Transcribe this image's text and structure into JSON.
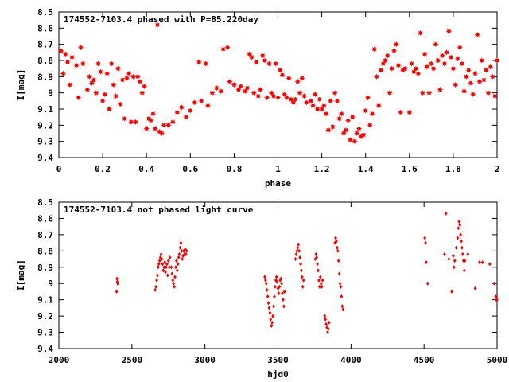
{
  "chart_data": [
    {
      "type": "scatter",
      "title": "174552-7103.4 phased with P=85.220day",
      "xlabel": "phase",
      "ylabel": "I[mag]",
      "xlim": [
        0,
        2
      ],
      "ylim": [
        8.5,
        9.4
      ],
      "y_inverted": true,
      "grid": false,
      "marker": "star",
      "color": "#ff0000",
      "x_ticks": [
        0,
        0.2,
        0.4,
        0.6,
        0.8,
        1,
        1.2,
        1.4,
        1.6,
        1.8,
        2
      ],
      "x_tick_labels": [
        "0",
        "0.2",
        "0.4",
        "0.6",
        "0.8",
        "1",
        "1.2",
        "1.4",
        "1.6",
        "1.8",
        "2"
      ],
      "y_ticks": [
        8.5,
        8.6,
        8.7,
        8.8,
        8.9,
        9,
        9.1,
        9.2,
        9.3,
        9.4
      ],
      "y_tick_labels": [
        "8.5",
        "8.6",
        "8.7",
        "8.8",
        "8.9",
        "9",
        "9.1",
        "9.2",
        "9.3",
        "9.4"
      ],
      "points": [
        [
          0.01,
          8.74
        ],
        [
          0.02,
          8.88
        ],
        [
          0.03,
          8.76
        ],
        [
          0.04,
          8.81
        ],
        [
          0.05,
          8.95
        ],
        [
          0.06,
          8.78
        ],
        [
          0.08,
          8.83
        ],
        [
          0.09,
          9.03
        ],
        [
          0.1,
          8.72
        ],
        [
          0.11,
          8.82
        ],
        [
          0.13,
          8.98
        ],
        [
          0.14,
          8.9
        ],
        [
          0.15,
          8.94
        ],
        [
          0.16,
          8.92
        ],
        [
          0.17,
          9.0
        ],
        [
          0.18,
          8.82
        ],
        [
          0.19,
          8.87
        ],
        [
          0.2,
          9.05
        ],
        [
          0.21,
          9.01
        ],
        [
          0.22,
          8.88
        ],
        [
          0.23,
          9.1
        ],
        [
          0.24,
          8.82
        ],
        [
          0.25,
          8.95
        ],
        [
          0.26,
          9.02
        ],
        [
          0.27,
          8.85
        ],
        [
          0.28,
          9.07
        ],
        [
          0.29,
          8.92
        ],
        [
          0.3,
          9.16
        ],
        [
          0.31,
          8.91
        ],
        [
          0.32,
          8.88
        ],
        [
          0.33,
          9.18
        ],
        [
          0.34,
          8.9
        ],
        [
          0.35,
          9.18
        ],
        [
          0.36,
          8.9
        ],
        [
          0.37,
          8.93
        ],
        [
          0.38,
          9.0
        ],
        [
          0.39,
          8.96
        ],
        [
          0.4,
          9.22
        ],
        [
          0.41,
          9.16
        ],
        [
          0.42,
          9.17
        ],
        [
          0.43,
          9.13
        ],
        [
          0.44,
          9.22
        ],
        [
          0.45,
          8.58
        ],
        [
          0.46,
          9.24
        ],
        [
          0.47,
          9.25
        ],
        [
          0.48,
          9.2
        ],
        [
          0.5,
          9.2
        ],
        [
          0.52,
          9.18
        ],
        [
          0.54,
          9.12
        ],
        [
          0.56,
          9.09
        ],
        [
          0.58,
          9.15
        ],
        [
          0.6,
          9.11
        ],
        [
          0.62,
          9.06
        ],
        [
          0.64,
          8.81
        ],
        [
          0.65,
          9.05
        ],
        [
          0.67,
          8.82
        ],
        [
          0.68,
          9.08
        ],
        [
          0.7,
          9.0
        ],
        [
          0.72,
          8.97
        ],
        [
          0.74,
          8.99
        ],
        [
          0.75,
          8.73
        ],
        [
          0.77,
          8.72
        ],
        [
          0.78,
          8.93
        ],
        [
          0.8,
          8.95
        ],
        [
          0.82,
          8.98
        ],
        [
          0.83,
          8.96
        ],
        [
          0.85,
          8.99
        ],
        [
          0.86,
          8.97
        ],
        [
          0.87,
          8.76
        ],
        [
          0.88,
          8.78
        ],
        [
          0.89,
          9.0
        ],
        [
          0.9,
          8.81
        ],
        [
          0.91,
          9.02
        ],
        [
          0.92,
          8.98
        ],
        [
          0.93,
          8.77
        ],
        [
          0.94,
          8.8
        ],
        [
          0.95,
          9.03
        ],
        [
          0.96,
          8.82
        ],
        [
          0.97,
          9.0
        ],
        [
          0.98,
          9.02
        ],
        [
          0.99,
          8.82
        ],
        [
          1.0,
          9.03
        ],
        [
          1.01,
          8.86
        ],
        [
          1.02,
          8.89
        ],
        [
          1.03,
          9.01
        ],
        [
          1.04,
          9.03
        ],
        [
          1.05,
          8.91
        ],
        [
          1.06,
          9.04
        ],
        [
          1.07,
          9.06
        ],
        [
          1.08,
          9.04
        ],
        [
          1.09,
          8.93
        ],
        [
          1.1,
          9.0
        ],
        [
          1.11,
          8.91
        ],
        [
          1.12,
          9.02
        ],
        [
          1.13,
          9.06
        ],
        [
          1.15,
          9.05
        ],
        [
          1.16,
          9.08
        ],
        [
          1.17,
          9.01
        ],
        [
          1.18,
          9.1
        ],
        [
          1.19,
          9.04
        ],
        [
          1.2,
          9.1
        ],
        [
          1.21,
          9.08
        ],
        [
          1.22,
          9.13
        ],
        [
          1.23,
          9.23
        ],
        [
          1.24,
          9.05
        ],
        [
          1.25,
          9.21
        ],
        [
          1.26,
          9.0
        ],
        [
          1.27,
          9.05
        ],
        [
          1.28,
          9.16
        ],
        [
          1.29,
          9.13
        ],
        [
          1.3,
          9.25
        ],
        [
          1.31,
          9.23
        ],
        [
          1.32,
          9.17
        ],
        [
          1.33,
          9.29
        ],
        [
          1.34,
          9.15
        ],
        [
          1.35,
          9.3
        ],
        [
          1.36,
          9.25
        ],
        [
          1.37,
          9.22
        ],
        [
          1.38,
          9.27
        ],
        [
          1.39,
          9.26
        ],
        [
          1.4,
          9.11
        ],
        [
          1.41,
          9.03
        ],
        [
          1.42,
          9.2
        ],
        [
          1.43,
          9.13
        ],
        [
          1.44,
          8.73
        ],
        [
          1.45,
          8.9
        ],
        [
          1.46,
          9.08
        ],
        [
          1.47,
          8.86
        ],
        [
          1.48,
          8.82
        ],
        [
          1.49,
          8.8
        ],
        [
          1.5,
          8.77
        ],
        [
          1.51,
          9.0
        ],
        [
          1.52,
          8.85
        ],
        [
          1.53,
          8.74
        ],
        [
          1.54,
          8.7
        ],
        [
          1.55,
          8.83
        ],
        [
          1.56,
          9.12
        ],
        [
          1.57,
          8.86
        ],
        [
          1.58,
          8.85
        ],
        [
          1.6,
          9.12
        ],
        [
          1.61,
          8.82
        ],
        [
          1.62,
          8.87
        ],
        [
          1.63,
          8.85
        ],
        [
          1.64,
          8.88
        ],
        [
          1.65,
          8.63
        ],
        [
          1.66,
          9.0
        ],
        [
          1.67,
          8.76
        ],
        [
          1.68,
          8.84
        ],
        [
          1.69,
          9.0
        ],
        [
          1.7,
          8.82
        ],
        [
          1.71,
          8.85
        ],
        [
          1.72,
          8.7
        ],
        [
          1.73,
          8.8
        ],
        [
          1.74,
          8.98
        ],
        [
          1.75,
          8.77
        ],
        [
          1.76,
          8.82
        ],
        [
          1.77,
          8.75
        ],
        [
          1.78,
          8.62
        ],
        [
          1.79,
          8.78
        ],
        [
          1.8,
          8.85
        ],
        [
          1.81,
          8.95
        ],
        [
          1.82,
          8.79
        ],
        [
          1.83,
          8.72
        ],
        [
          1.84,
          8.82
        ],
        [
          1.85,
          8.99
        ],
        [
          1.86,
          8.9
        ],
        [
          1.87,
          8.86
        ],
        [
          1.88,
          8.94
        ],
        [
          1.89,
          9.01
        ],
        [
          1.9,
          8.88
        ],
        [
          1.91,
          8.64
        ],
        [
          1.92,
          8.93
        ],
        [
          1.93,
          8.8
        ],
        [
          1.94,
          8.92
        ],
        [
          1.95,
          8.86
        ],
        [
          1.96,
          9.0
        ],
        [
          1.97,
          8.84
        ],
        [
          1.98,
          8.9
        ],
        [
          1.99,
          9.02
        ],
        [
          2.0,
          8.8
        ]
      ]
    },
    {
      "type": "scatter",
      "title": "174552-7103.4 not phased light curve",
      "xlabel": "hjd0",
      "ylabel": "I[mag]",
      "xlim": [
        2000,
        5000
      ],
      "ylim": [
        8.5,
        9.4
      ],
      "y_inverted": true,
      "grid": false,
      "marker": "diamond",
      "color": "#ff0000",
      "x_ticks": [
        2000,
        2500,
        3000,
        3500,
        4000,
        4500,
        5000
      ],
      "x_tick_labels": [
        "2000",
        "2500",
        "3000",
        "3500",
        "4000",
        "4500",
        "5000"
      ],
      "y_ticks": [
        8.5,
        8.6,
        8.7,
        8.8,
        8.9,
        9,
        9.1,
        9.2,
        9.3,
        9.4
      ],
      "y_tick_labels": [
        "8.5",
        "8.6",
        "8.7",
        "8.8",
        "8.9",
        "9",
        "9.1",
        "9.2",
        "9.3",
        "9.4"
      ],
      "points": [
        [
          2395,
          9.05
        ],
        [
          2398,
          8.97
        ],
        [
          2400,
          8.99
        ],
        [
          2403,
          9.0
        ],
        [
          2660,
          9.04
        ],
        [
          2665,
          9.02
        ],
        [
          2670,
          8.98
        ],
        [
          2675,
          8.95
        ],
        [
          2680,
          8.9
        ],
        [
          2685,
          8.88
        ],
        [
          2690,
          8.86
        ],
        [
          2695,
          8.84
        ],
        [
          2700,
          8.82
        ],
        [
          2705,
          8.85
        ],
        [
          2710,
          8.88
        ],
        [
          2715,
          8.92
        ],
        [
          2720,
          8.9
        ],
        [
          2725,
          8.87
        ],
        [
          2730,
          8.93
        ],
        [
          2735,
          8.9
        ],
        [
          2740,
          8.88
        ],
        [
          2745,
          8.95
        ],
        [
          2750,
          8.86
        ],
        [
          2755,
          8.9
        ],
        [
          2760,
          8.84
        ],
        [
          2770,
          8.9
        ],
        [
          2775,
          8.94
        ],
        [
          2780,
          8.98
        ],
        [
          2785,
          9.0
        ],
        [
          2790,
          9.02
        ],
        [
          2795,
          8.96
        ],
        [
          2800,
          8.9
        ],
        [
          2805,
          8.86
        ],
        [
          2810,
          8.92
        ],
        [
          2815,
          8.88
        ],
        [
          2820,
          8.84
        ],
        [
          2825,
          8.82
        ],
        [
          2830,
          8.78
        ],
        [
          2835,
          8.75
        ],
        [
          2840,
          8.8
        ],
        [
          2845,
          8.85
        ],
        [
          2850,
          8.83
        ],
        [
          2855,
          8.8
        ],
        [
          2860,
          8.82
        ],
        [
          2865,
          8.79
        ],
        [
          2870,
          8.82
        ],
        [
          2875,
          8.8
        ],
        [
          3410,
          8.96
        ],
        [
          3415,
          8.98
        ],
        [
          3420,
          9.0
        ],
        [
          3425,
          9.04
        ],
        [
          3430,
          9.08
        ],
        [
          3435,
          9.12
        ],
        [
          3440,
          9.15
        ],
        [
          3445,
          9.18
        ],
        [
          3450,
          9.22
        ],
        [
          3455,
          9.26
        ],
        [
          3460,
          9.24
        ],
        [
          3465,
          9.2
        ],
        [
          3470,
          9.14
        ],
        [
          3475,
          9.08
        ],
        [
          3480,
          9.02
        ],
        [
          3485,
          8.98
        ],
        [
          3490,
          8.96
        ],
        [
          3495,
          8.99
        ],
        [
          3500,
          9.03
        ],
        [
          3505,
          9.06
        ],
        [
          3510,
          9.02
        ],
        [
          3515,
          8.98
        ],
        [
          3520,
          8.97
        ],
        [
          3525,
          9.0
        ],
        [
          3530,
          9.06
        ],
        [
          3535,
          9.1
        ],
        [
          3540,
          9.14
        ],
        [
          3545,
          9.05
        ],
        [
          3620,
          8.85
        ],
        [
          3625,
          8.82
        ],
        [
          3630,
          8.8
        ],
        [
          3635,
          8.78
        ],
        [
          3640,
          8.76
        ],
        [
          3645,
          8.8
        ],
        [
          3650,
          8.84
        ],
        [
          3655,
          8.88
        ],
        [
          3660,
          8.92
        ],
        [
          3665,
          8.96
        ],
        [
          3670,
          9.02
        ],
        [
          3675,
          8.98
        ],
        [
          3755,
          8.85
        ],
        [
          3760,
          8.82
        ],
        [
          3765,
          8.84
        ],
        [
          3770,
          8.88
        ],
        [
          3775,
          8.92
        ],
        [
          3780,
          8.98
        ],
        [
          3785,
          9.02
        ],
        [
          3790,
          8.96
        ],
        [
          3795,
          9.0
        ],
        [
          3800,
          9.02
        ],
        [
          3805,
          8.98
        ],
        [
          3820,
          9.2
        ],
        [
          3825,
          9.22
        ],
        [
          3830,
          9.25
        ],
        [
          3835,
          9.27
        ],
        [
          3840,
          9.3
        ],
        [
          3845,
          9.28
        ],
        [
          3850,
          9.24
        ],
        [
          3890,
          8.75
        ],
        [
          3895,
          8.72
        ],
        [
          3900,
          8.74
        ],
        [
          3905,
          8.78
        ],
        [
          3910,
          8.8
        ],
        [
          3915,
          8.86
        ],
        [
          3920,
          8.94
        ],
        [
          3925,
          9.0
        ],
        [
          3930,
          9.02
        ],
        [
          3935,
          9.08
        ],
        [
          3940,
          9.14
        ],
        [
          3945,
          9.16
        ],
        [
          4505,
          8.72
        ],
        [
          4510,
          8.75
        ],
        [
          4515,
          8.87
        ],
        [
          4525,
          9.0
        ],
        [
          4640,
          8.82
        ],
        [
          4650,
          8.57
        ],
        [
          4670,
          8.85
        ],
        [
          4690,
          9.05
        ],
        [
          4700,
          8.83
        ],
        [
          4705,
          8.9
        ],
        [
          4710,
          8.86
        ],
        [
          4720,
          8.78
        ],
        [
          4730,
          8.72
        ],
        [
          4735,
          8.66
        ],
        [
          4740,
          8.62
        ],
        [
          4745,
          8.64
        ],
        [
          4750,
          8.7
        ],
        [
          4755,
          8.74
        ],
        [
          4760,
          8.78
        ],
        [
          4765,
          8.82
        ],
        [
          4770,
          8.86
        ],
        [
          4775,
          8.92
        ],
        [
          4780,
          8.86
        ],
        [
          4800,
          8.82
        ],
        [
          4850,
          9.03
        ],
        [
          4880,
          8.87
        ],
        [
          4900,
          8.87
        ],
        [
          4950,
          8.88
        ],
        [
          4980,
          9.0
        ],
        [
          4990,
          9.08
        ],
        [
          4995,
          9.1
        ],
        [
          5000,
          9.1
        ]
      ]
    }
  ]
}
